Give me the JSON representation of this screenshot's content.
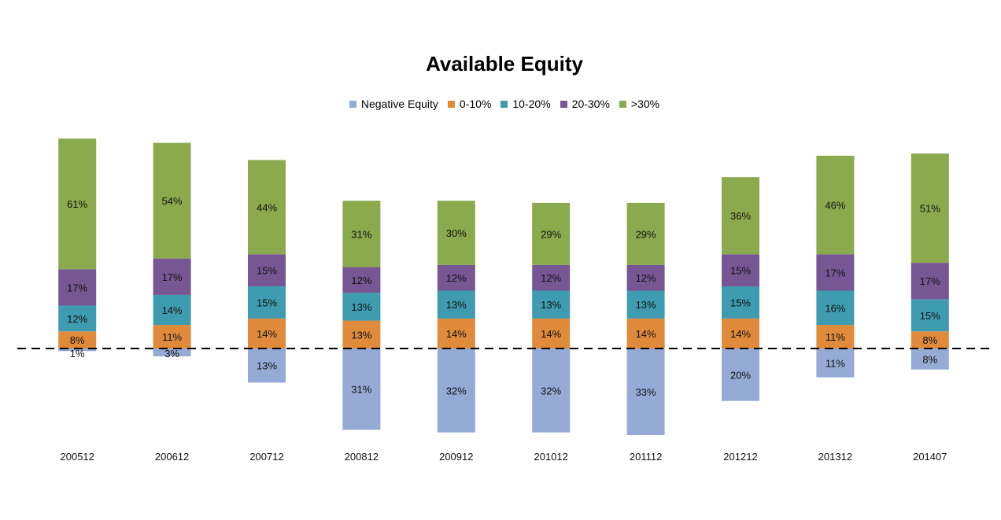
{
  "chart_data": {
    "type": "bar",
    "title": "Available Equity",
    "categories": [
      "200512",
      "200612",
      "200712",
      "200812",
      "200912",
      "201012",
      "201112",
      "201212",
      "201312",
      "201407"
    ],
    "series": [
      {
        "name": "Negative Equity",
        "color": "#95abd5",
        "values": [
          1,
          3,
          13,
          31,
          32,
          32,
          33,
          20,
          11,
          8
        ],
        "labels": [
          "1%",
          "3%",
          "13%",
          "31%",
          "32%",
          "32%",
          "33%",
          "20%",
          "11%",
          "8%"
        ]
      },
      {
        "name": "0-10%",
        "color": "#e08a3c",
        "values": [
          8,
          11,
          14,
          13,
          14,
          14,
          14,
          14,
          11,
          8
        ],
        "labels": [
          "8%",
          "11%",
          "14%",
          "13%",
          "14%",
          "14%",
          "14%",
          "14%",
          "11%",
          "8%"
        ]
      },
      {
        "name": "10-20%",
        "color": "#3f9bb0",
        "values": [
          12,
          14,
          15,
          13,
          13,
          13,
          13,
          15,
          16,
          15
        ],
        "labels": [
          "12%",
          "14%",
          "15%",
          "13%",
          "13%",
          "13%",
          "13%",
          "15%",
          "16%",
          "15%"
        ]
      },
      {
        "name": "20-30%",
        "color": "#765693",
        "values": [
          17,
          17,
          15,
          12,
          12,
          12,
          12,
          15,
          17,
          17
        ],
        "labels": [
          "17%",
          "17%",
          "15%",
          "12%",
          "12%",
          "12%",
          "12%",
          "15%",
          "17%",
          "17%"
        ]
      },
      {
        "name": ">30%",
        "color": "#8aaa4d",
        "values": [
          61,
          54,
          44,
          31,
          30,
          29,
          29,
          36,
          46,
          51
        ],
        "labels": [
          "61%",
          "54%",
          "44%",
          "31%",
          "30%",
          "29%",
          "29%",
          "36%",
          "46%",
          "51%"
        ]
      }
    ],
    "baseline": "dashed",
    "legend_position": "top",
    "grid": false,
    "xlabel": "",
    "ylabel": ""
  }
}
